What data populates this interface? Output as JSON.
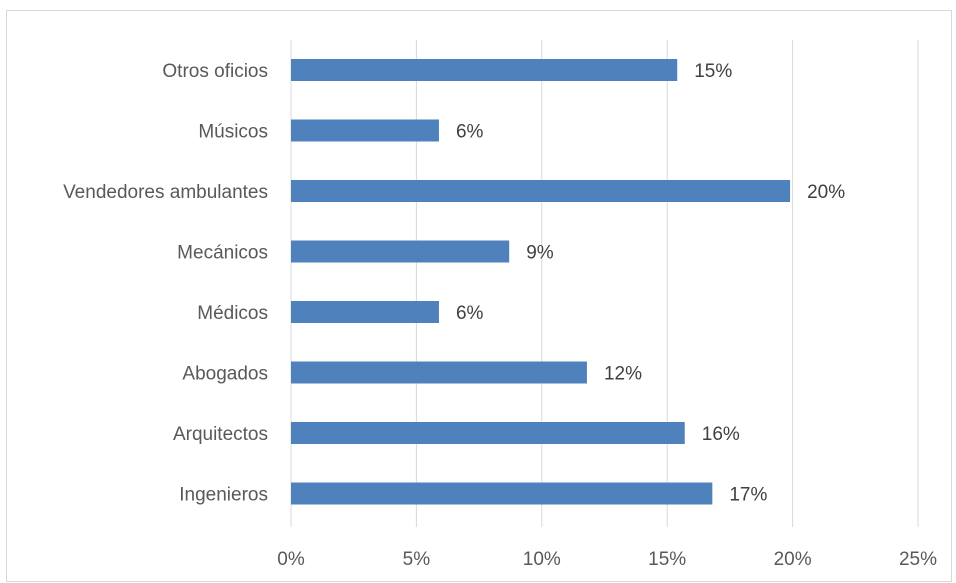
{
  "chart_data": {
    "type": "bar",
    "orientation": "horizontal",
    "title": "",
    "xlabel": "",
    "ylabel": "",
    "categories": [
      "Otros oficios",
      "Músicos",
      "Vendedores ambulantes",
      "Mecánicos",
      "Médicos",
      "Abogados",
      "Arquitectos",
      "Ingenieros"
    ],
    "values": [
      15.4,
      5.9,
      19.9,
      8.7,
      5.9,
      11.8,
      15.7,
      16.8
    ],
    "data_labels": [
      "15%",
      "6%",
      "20%",
      "9%",
      "6%",
      "12%",
      "16%",
      "17%"
    ],
    "xlim": [
      0,
      25
    ],
    "x_ticks": [
      0,
      5,
      10,
      15,
      20,
      25
    ],
    "x_tick_labels": [
      "0%",
      "5%",
      "10%",
      "15%",
      "20%",
      "25%"
    ],
    "bar_color": "#4f81bd",
    "grid": true,
    "legend": "none"
  }
}
